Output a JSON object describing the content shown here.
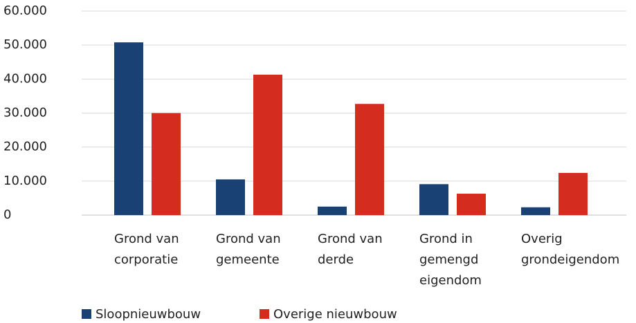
{
  "chart_data": {
    "type": "bar",
    "categories": [
      "Grond van corporatie",
      "Grond van gemeente",
      "Grond van derde",
      "Grond in gemengd eigendom",
      "Overig grondeigendom"
    ],
    "series": [
      {
        "name": "Sloopnieuwbouw",
        "color": "#1a4173",
        "values": [
          50800,
          10500,
          2500,
          9100,
          2300
        ]
      },
      {
        "name": "Overige nieuwbouw",
        "color": "#d42d1f",
        "values": [
          30000,
          41300,
          32700,
          6300,
          12400
        ]
      }
    ],
    "ylim": [
      0,
      60000
    ],
    "yticks": [
      0,
      {
        "value": 10000,
        "label": "10.000"
      },
      {
        "value": 20000,
        "label": "20.000"
      },
      {
        "value": 30000,
        "label": "30.000"
      },
      {
        "value": 40000,
        "label": "40.000"
      },
      {
        "value": 50000,
        "label": "50.000"
      },
      {
        "value": 60000,
        "label": "60.000"
      }
    ],
    "grid": true
  }
}
